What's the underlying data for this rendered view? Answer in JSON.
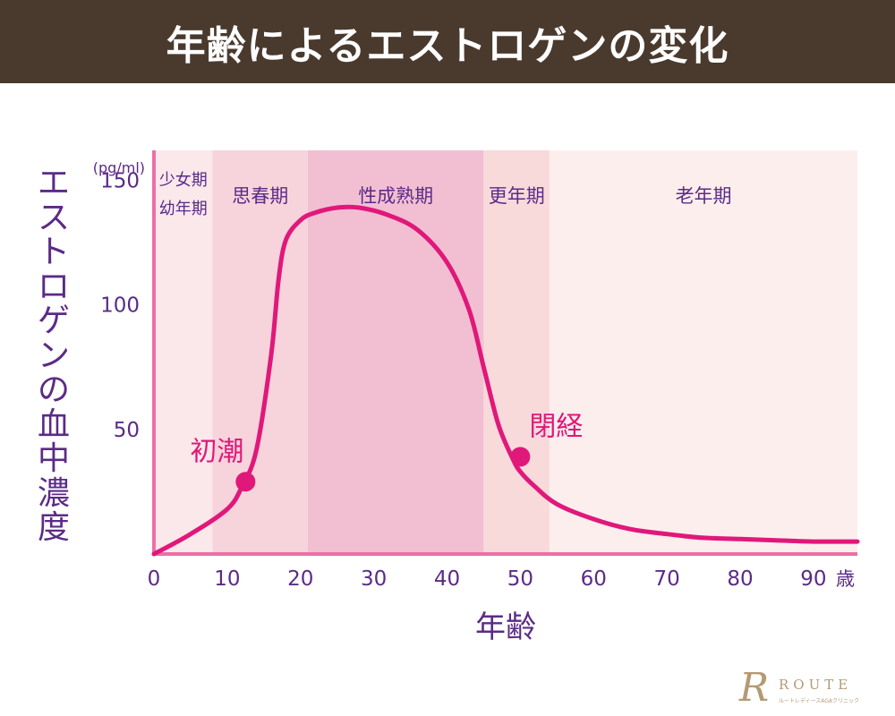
{
  "header": {
    "title": "年齢によるエストロゲンの変化"
  },
  "colors": {
    "header_bg": "#4a3a2e",
    "curve": "#e0187a",
    "text": "#5b2b87",
    "axis": "#ec6fa6",
    "stage_1": "#fbe8ea",
    "stage_2": "#f7d3dc",
    "stage_3": "#f2bfd2",
    "stage_4": "#f9dadb",
    "stage_5": "#fdeeee",
    "logo": "#b49a74"
  },
  "chart_data": {
    "type": "line",
    "title": "年齢によるエストロゲンの変化",
    "xlabel": "年齢",
    "x_unit": "歳",
    "ylabel": "エストロゲンの血中濃度",
    "y_unit": "(pg/ml)",
    "xlim": [
      0,
      96
    ],
    "ylim": [
      0,
      162
    ],
    "x_ticks": [
      0,
      10,
      20,
      30,
      40,
      50,
      60,
      70,
      80,
      90
    ],
    "y_ticks": [
      50,
      100,
      150
    ],
    "grid": false,
    "series": [
      {
        "name": "エストロゲン",
        "x": [
          0,
          5,
          10,
          12,
          14,
          16,
          17,
          18,
          20,
          22,
          25,
          28,
          32,
          36,
          40,
          43,
          45,
          47,
          49,
          50,
          52,
          55,
          60,
          65,
          70,
          75,
          80,
          85,
          90,
          96
        ],
        "y": [
          0,
          8,
          18,
          27,
          42,
          80,
          110,
          126,
          134,
          137,
          139,
          139,
          136,
          130,
          117,
          98,
          75,
          52,
          38,
          33,
          27,
          20,
          14,
          10,
          8,
          6.5,
          6,
          5.5,
          5,
          5
        ]
      }
    ],
    "stages": [
      {
        "label": "少女期\n幼年期",
        "start": 0,
        "end": 8
      },
      {
        "label": "思春期",
        "start": 8,
        "end": 21
      },
      {
        "label": "性成熟期",
        "start": 21,
        "end": 45
      },
      {
        "label": "更年期",
        "start": 45,
        "end": 54
      },
      {
        "label": "老年期",
        "start": 54,
        "end": 96
      }
    ],
    "annotations": [
      {
        "label": "初潮",
        "x": 12.5,
        "y": 29
      },
      {
        "label": "閉経",
        "x": 50,
        "y": 39
      }
    ]
  },
  "logo": {
    "letter": "R",
    "name": "ROUTE",
    "subtitle": "ルートレディースAGAクリニック"
  }
}
